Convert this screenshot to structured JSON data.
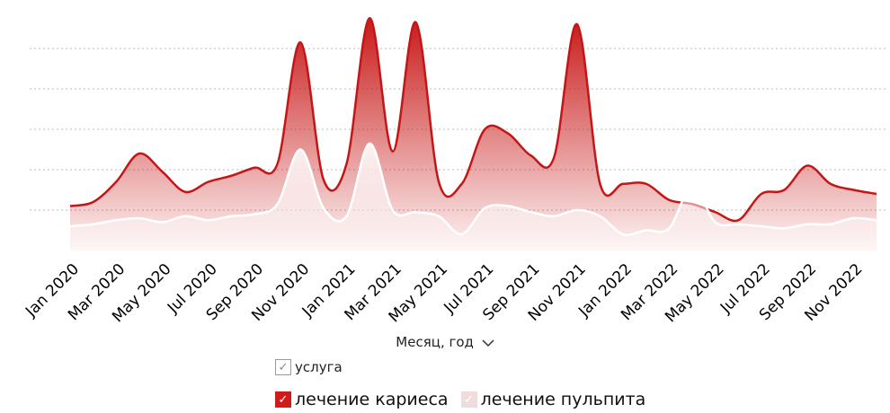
{
  "chart_data": {
    "type": "area",
    "x": [
      "Jan 2020",
      "Feb 2020",
      "Mar 2020",
      "Apr 2020",
      "May 2020",
      "Jun 2020",
      "Jul 2020",
      "Aug 2020",
      "Sep 2020",
      "Oct 2020",
      "Nov 2020",
      "Dec 2020",
      "Jan 2021",
      "Feb 2021",
      "Mar 2021",
      "Apr 2021",
      "May 2021",
      "Jun 2021",
      "Jul 2021",
      "Aug 2021",
      "Sep 2021",
      "Oct 2021",
      "Nov 2021",
      "Dec 2021",
      "Jan 2022",
      "Feb 2022",
      "Mar 2022",
      "Apr 2022",
      "May 2022",
      "Jun 2022",
      "Jul 2022",
      "Aug 2022",
      "Sep 2022",
      "Oct 2022",
      "Nov 2022",
      "Dec 2022"
    ],
    "tick_labels": [
      "Jan 2020",
      "Mar 2020",
      "May 2020",
      "Jul 2020",
      "Sep 2020",
      "Nov 2020",
      "Jan 2021",
      "Mar 2021",
      "May 2021",
      "Jul 2021",
      "Sep 2021",
      "Nov 2021",
      "Jan 2022",
      "Mar 2022",
      "May 2022",
      "Jul 2022",
      "Sep 2022",
      "Nov 2022"
    ],
    "series": [
      {
        "name": "лечение кариеса",
        "color": "#cc1c1c",
        "values": [
          2.2,
          2.4,
          3.4,
          4.8,
          3.9,
          2.9,
          3.4,
          3.7,
          4.1,
          4.3,
          10.3,
          3.5,
          4.3,
          11.5,
          4.9,
          11.3,
          3.4,
          3.3,
          6.0,
          5.8,
          4.7,
          4.6,
          11.2,
          3.3,
          3.3,
          3.3,
          2.5,
          2.3,
          1.9,
          1.5,
          2.8,
          3.0,
          4.2,
          3.3,
          3.0,
          2.8
        ]
      },
      {
        "name": "лечение пульпита",
        "color": "#f1dcdc",
        "values": [
          1.2,
          1.3,
          1.5,
          1.6,
          1.4,
          1.7,
          1.5,
          1.7,
          1.8,
          2.3,
          5.0,
          2.1,
          1.7,
          5.3,
          2.0,
          1.9,
          1.7,
          0.8,
          2.1,
          2.2,
          1.9,
          1.7,
          2.0,
          1.7,
          0.8,
          1.0,
          1.1,
          3.2,
          1.4,
          1.3,
          1.2,
          1.1,
          1.3,
          1.3,
          1.6,
          1.5
        ]
      }
    ],
    "ylim": [
      0,
      12
    ],
    "grid": true,
    "xlabel": "Месяц, год",
    "legend": {
      "title": "услуга",
      "placement": "bottom"
    }
  }
}
